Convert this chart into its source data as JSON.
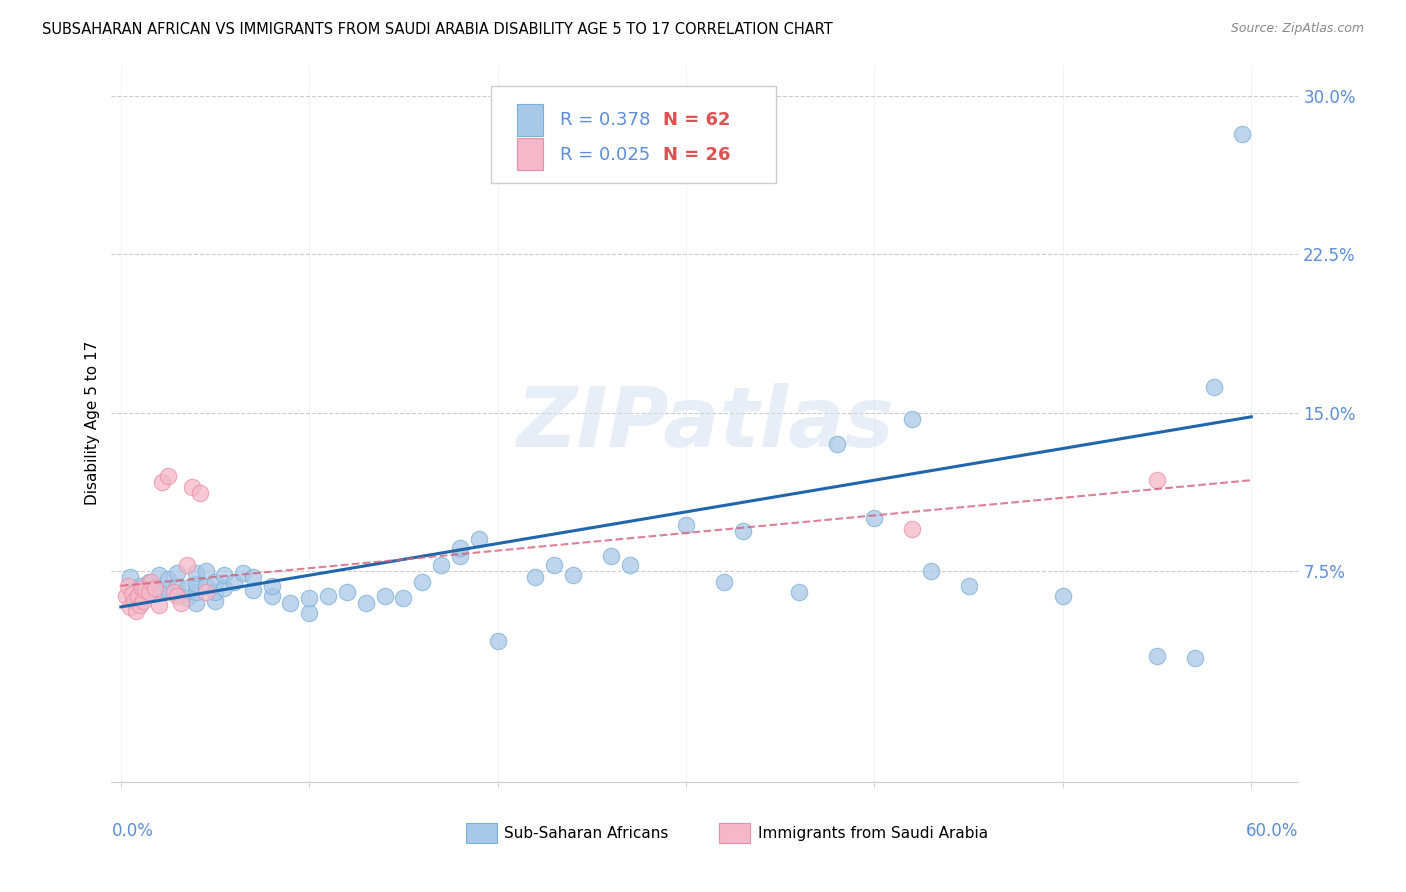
{
  "title": "SUBSAHARAN AFRICAN VS IMMIGRANTS FROM SAUDI ARABIA DISABILITY AGE 5 TO 17 CORRELATION CHART",
  "source": "Source: ZipAtlas.com",
  "ylabel": "Disability Age 5 to 17",
  "color_blue": "#a8c8e8",
  "color_blue_edge": "#7ab0d4",
  "color_pink": "#f4b8c8",
  "color_pink_edge": "#e890a8",
  "color_blue_line": "#2166ac",
  "color_pink_line": "#d4607a",
  "color_ytick": "#5b8dd9",
  "watermark": "ZIPatlas",
  "legend_r1": "R = 0.378",
  "legend_n1": "N = 62",
  "legend_r2": "R = 0.025",
  "legend_n2": "N = 26",
  "blue_scatter_x": [
    0.005,
    0.01,
    0.015,
    0.02,
    0.02,
    0.025,
    0.025,
    0.03,
    0.03,
    0.03,
    0.035,
    0.035,
    0.04,
    0.04,
    0.04,
    0.04,
    0.045,
    0.045,
    0.05,
    0.05,
    0.05,
    0.055,
    0.055,
    0.06,
    0.065,
    0.07,
    0.07,
    0.08,
    0.08,
    0.09,
    0.1,
    0.1,
    0.11,
    0.12,
    0.13,
    0.14,
    0.15,
    0.16,
    0.17,
    0.18,
    0.18,
    0.19,
    0.2,
    0.22,
    0.23,
    0.24,
    0.26,
    0.27,
    0.3,
    0.32,
    0.33,
    0.36,
    0.38,
    0.4,
    0.42,
    0.43,
    0.45,
    0.5,
    0.55,
    0.57,
    0.58,
    0.595
  ],
  "blue_scatter_y": [
    0.072,
    0.068,
    0.07,
    0.065,
    0.073,
    0.066,
    0.071,
    0.064,
    0.068,
    0.074,
    0.062,
    0.067,
    0.06,
    0.065,
    0.069,
    0.074,
    0.068,
    0.075,
    0.061,
    0.065,
    0.07,
    0.067,
    0.073,
    0.07,
    0.074,
    0.066,
    0.072,
    0.063,
    0.068,
    0.06,
    0.055,
    0.062,
    0.063,
    0.065,
    0.06,
    0.063,
    0.062,
    0.07,
    0.078,
    0.082,
    0.086,
    0.09,
    0.042,
    0.072,
    0.078,
    0.073,
    0.082,
    0.078,
    0.097,
    0.07,
    0.094,
    0.065,
    0.135,
    0.1,
    0.147,
    0.075,
    0.068,
    0.063,
    0.035,
    0.034,
    0.162,
    0.282
  ],
  "pink_scatter_x": [
    0.003,
    0.004,
    0.005,
    0.006,
    0.007,
    0.008,
    0.009,
    0.01,
    0.011,
    0.012,
    0.013,
    0.015,
    0.016,
    0.018,
    0.02,
    0.022,
    0.025,
    0.028,
    0.03,
    0.032,
    0.035,
    0.038,
    0.042,
    0.045,
    0.42,
    0.55
  ],
  "pink_scatter_y": [
    0.063,
    0.068,
    0.058,
    0.064,
    0.061,
    0.056,
    0.063,
    0.059,
    0.067,
    0.061,
    0.066,
    0.065,
    0.07,
    0.067,
    0.059,
    0.117,
    0.12,
    0.065,
    0.063,
    0.06,
    0.078,
    0.115,
    0.112,
    0.065,
    0.095,
    0.118
  ],
  "blue_trendline_x": [
    0.0,
    0.6
  ],
  "blue_trendline_y": [
    0.058,
    0.148
  ],
  "pink_trendline_x": [
    0.0,
    0.6
  ],
  "pink_trendline_y": [
    0.068,
    0.118
  ],
  "xlim": [
    -0.005,
    0.625
  ],
  "ylim": [
    -0.025,
    0.315
  ],
  "ytick_vals": [
    0.075,
    0.15,
    0.225,
    0.3
  ],
  "ytick_labels": [
    "7.5%",
    "15.0%",
    "22.5%",
    "30.0%"
  ],
  "xtick_vals": [
    0.0,
    0.1,
    0.2,
    0.3,
    0.4,
    0.5,
    0.6
  ]
}
